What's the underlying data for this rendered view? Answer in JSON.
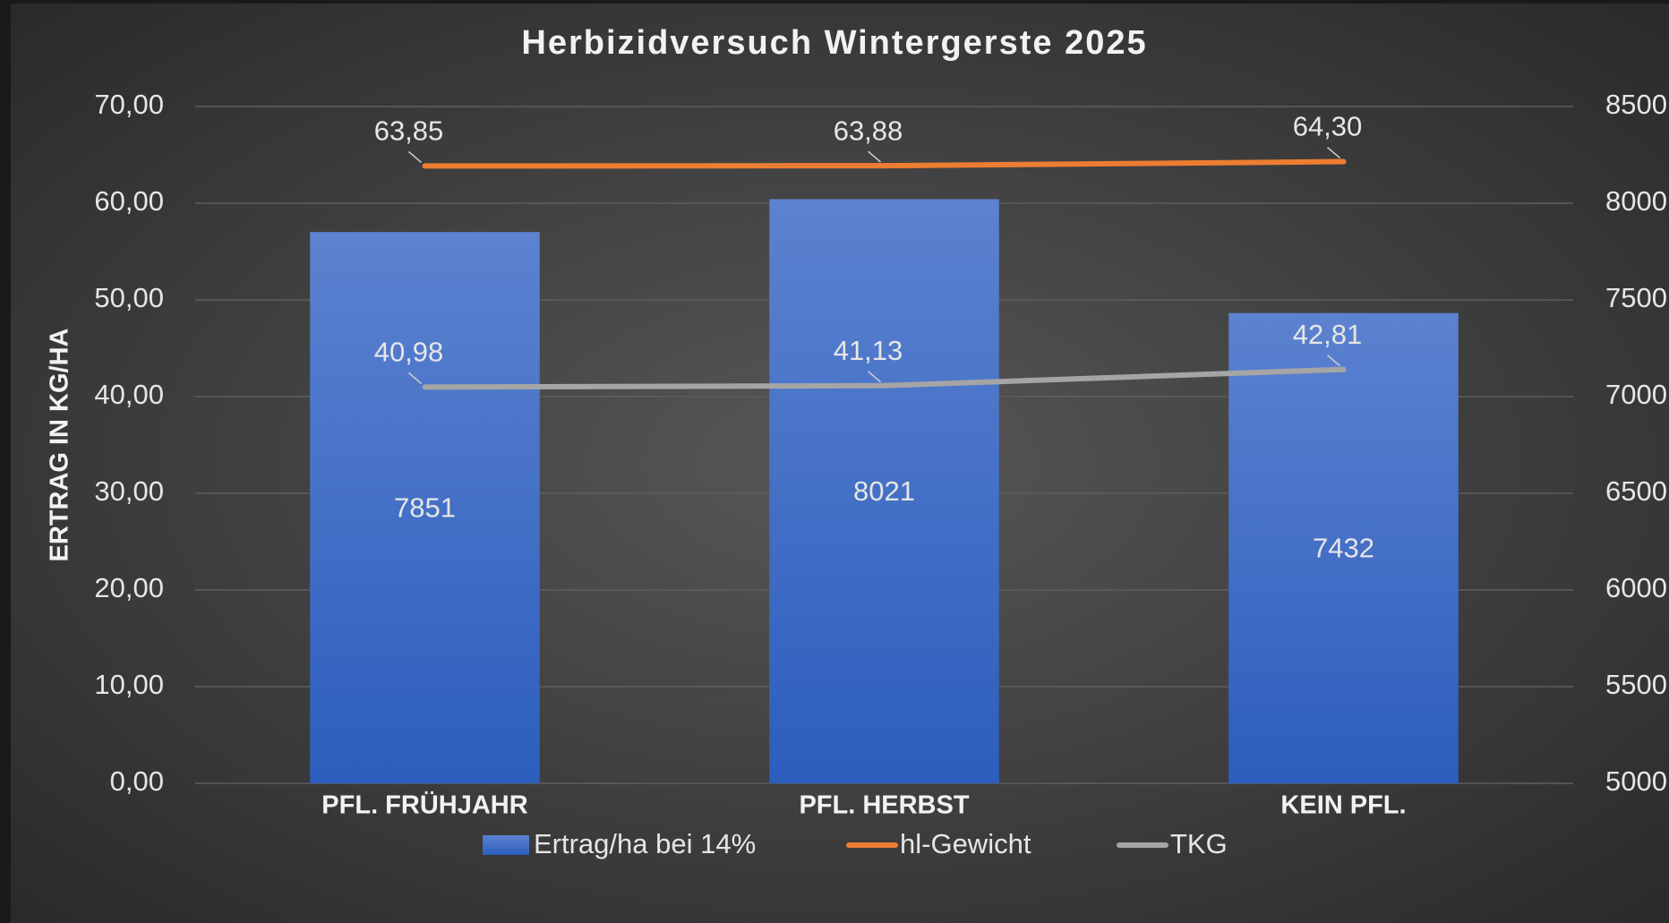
{
  "chart_data": {
    "type": "bar-line",
    "title": "Herbizidversuch Wintergerste 2025",
    "y_label": "ERTRAG IN KG/HA",
    "categories": [
      "PFL. FRÜHJAHR",
      "PFL. HERBST",
      "KEIN PFL."
    ],
    "series": [
      {
        "name": "Ertrag/ha bei 14%",
        "type": "bar",
        "axis": "y2",
        "color": "#4472c4",
        "values": [
          7851,
          8021,
          7432
        ]
      },
      {
        "name": "hl-Gewicht",
        "type": "line",
        "color": "#ed7d31",
        "values": [
          63.85,
          63.88,
          64.3
        ],
        "value_labels": [
          "63,85",
          "63,88",
          "64,30"
        ]
      },
      {
        "name": "TKG",
        "type": "line",
        "color": "#a5a5a5",
        "values": [
          40.98,
          41.13,
          42.81
        ],
        "value_labels": [
          "40,98",
          "41,13",
          "42,81"
        ]
      }
    ],
    "ylim": [
      0,
      70
    ],
    "yticks": [
      {
        "value": 0,
        "label": "0,00"
      },
      {
        "value": 10,
        "label": "10,00"
      },
      {
        "value": 20,
        "label": "20,00"
      },
      {
        "value": 30,
        "label": "30,00"
      },
      {
        "value": 40,
        "label": "40,00"
      },
      {
        "value": 50,
        "label": "50,00"
      },
      {
        "value": 60,
        "label": "60,00"
      },
      {
        "value": 70,
        "label": "70,00"
      }
    ],
    "y2lim": [
      5000,
      8500
    ],
    "y2ticks": [
      5000,
      5500,
      6000,
      6500,
      7000,
      7500,
      8000,
      8500
    ],
    "grid": true,
    "legend": "bottom"
  }
}
